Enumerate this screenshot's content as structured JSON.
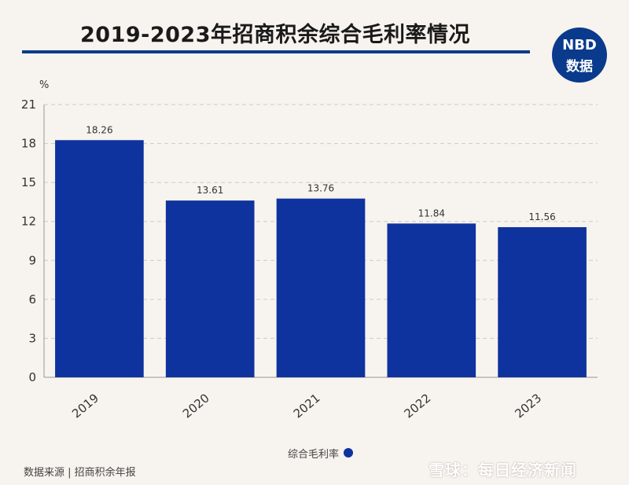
{
  "title": "2019-2023年招商积余综合毛利率情况",
  "logo": {
    "line1": "NBD",
    "line2": "数据"
  },
  "legend_label": "综合毛利率",
  "source": "数据来源 | 招商积余年报",
  "brandmark": "雪球：每日经济新闻",
  "colors": {
    "bar": "#0e339e",
    "accent": "#0a3a8c",
    "grid": "#cfcac3",
    "axis": "#9a968f",
    "background": "#f7f3ee"
  },
  "chart_data": {
    "type": "bar",
    "title": "2019-2023年招商积余综合毛利率情况",
    "unit": "%",
    "categories": [
      "2019",
      "2020",
      "2021",
      "2022",
      "2023"
    ],
    "series": [
      {
        "name": "综合毛利率",
        "values": [
          18.26,
          13.61,
          13.76,
          11.84,
          11.56
        ]
      }
    ],
    "data_labels": [
      "18.26",
      "13.61",
      "13.76",
      "11.84",
      "11.56"
    ],
    "yticks": [
      0,
      3,
      6,
      9,
      12,
      15,
      18,
      21
    ],
    "ylim": [
      0,
      21
    ],
    "grid": true,
    "legend_position": "bottom-center"
  }
}
